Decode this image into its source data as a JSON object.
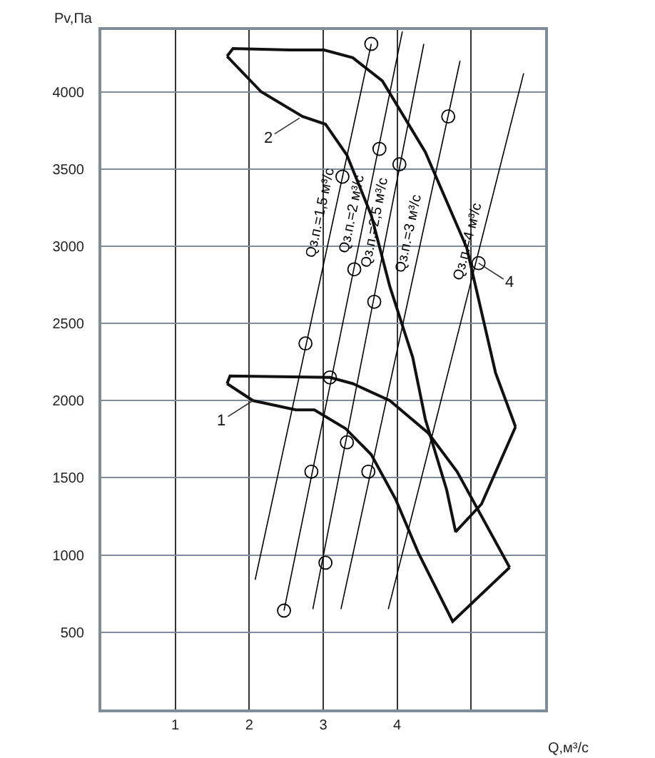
{
  "chart_data": {
    "type": "line",
    "xlabel": "Q,м³/с",
    "ylabel": "Pv,Па",
    "xlim": [
      0,
      6
    ],
    "xticks": [
      1,
      2,
      3,
      4,
      {
        "value": 5,
        "label": null
      },
      {
        "value": 6,
        "label": null
      }
    ],
    "ylim": [
      0,
      4400
    ],
    "yticks": [
      500,
      1000,
      1500,
      2000,
      2500,
      3000,
      3500,
      4000
    ],
    "grid": true,
    "marker": "none",
    "line_style": "solid",
    "series": [
      {
        "color": "#111111",
        "x": [
          1.7,
          1.78,
          2.55,
          3.01,
          3.4,
          3.8,
          4.38,
          4.94,
          5.33,
          5.6
        ],
        "values": [
          4230,
          4280,
          4270,
          4270,
          4220,
          4070,
          3610,
          2990,
          2180,
          1830
        ]
      },
      {
        "color": "#111111",
        "x": [
          1.7,
          2.16,
          2.72,
          3.03,
          3.32,
          3.65,
          3.9,
          4.21,
          4.38,
          4.67,
          4.79,
          5.14,
          5.6
        ],
        "values": [
          4230,
          4000,
          3840,
          3790,
          3590,
          3200,
          2740,
          2280,
          1880,
          1420,
          1150,
          1330,
          1830
        ]
      },
      {
        "color": "#111111",
        "x": [
          1.7,
          1.74,
          3.09,
          3.4,
          3.9,
          4.42,
          4.81,
          5.52
        ],
        "values": [
          2110,
          2160,
          2150,
          2110,
          2000,
          1790,
          1540,
          920
        ]
      },
      {
        "color": "#111111",
        "x": [
          1.7,
          2.05,
          2.63,
          2.88,
          3.3,
          3.65,
          3.98,
          4.29,
          4.75,
          5.52
        ],
        "values": [
          2110,
          2000,
          1940,
          1940,
          1820,
          1650,
          1360,
          1010,
          570,
          920
        ]
      },
      {
        "name": "Qз.п.=1,5 м³/с",
        "color": "#000000",
        "x": [
          2.08,
          3.65
        ],
        "values": [
          840,
          4310
        ]
      },
      {
        "name": "Qз.п.=2 м³/с",
        "color": "#000000",
        "x": [
          2.47,
          4.07
        ],
        "values": [
          640,
          4390
        ]
      },
      {
        "name": "Qз.п.=2,5 м³/с",
        "color": "#000000",
        "x": [
          2.86,
          4.36
        ],
        "values": [
          650,
          4310
        ]
      },
      {
        "name": "Qз.п.=3 м³/с",
        "color": "#000000",
        "x": [
          3.24,
          4.85
        ],
        "values": [
          650,
          4200
        ]
      },
      {
        "name": "Qз.п.=4 м³/с",
        "color": "#000000",
        "x": [
          3.88,
          5.71
        ],
        "values": [
          650,
          4120
        ]
      },
      {
        "type": "scatter",
        "marker": "circle",
        "color": "#000000",
        "x": [
          3.65,
          3.26,
          2.76,
          2.47,
          2.84,
          3.09,
          3.42,
          3.76,
          3.03,
          3.32,
          3.69,
          4.03,
          3.61,
          4.69,
          5.1
        ],
        "values": [
          4310,
          3450,
          2370,
          640,
          1540,
          2150,
          2850,
          3630,
          950,
          1730,
          2640,
          3530,
          1540,
          3840,
          2890
        ]
      }
    ],
    "annotations": [
      {
        "text": "1",
        "x": 2.05,
        "y": 2000
      },
      {
        "text": "2",
        "x": 2.68,
        "y": 3830
      },
      {
        "text": "4",
        "x": 5.1,
        "y": 2890
      }
    ]
  }
}
